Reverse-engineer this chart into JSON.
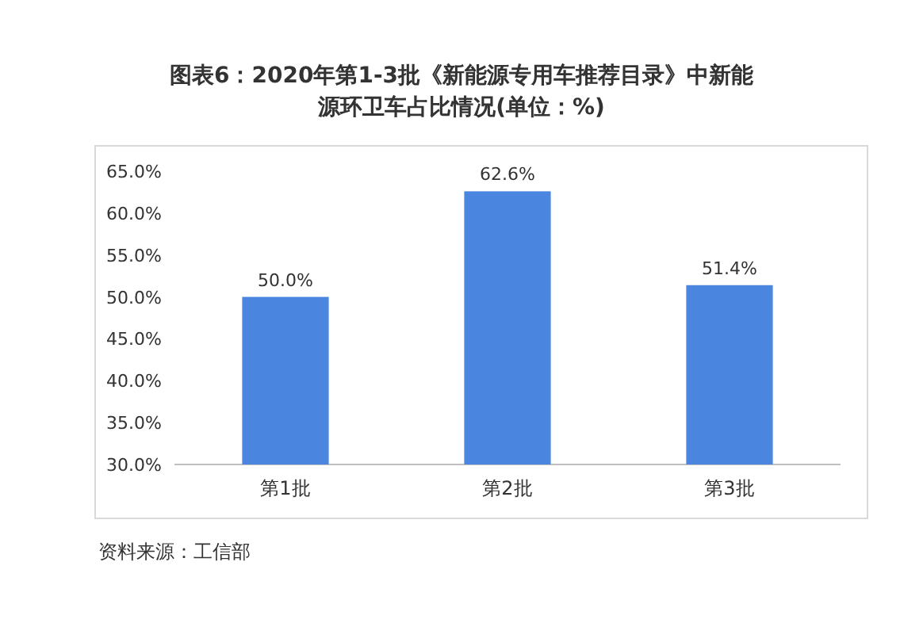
{
  "chart_data": {
    "type": "bar",
    "title": "图表6：2020年第1-3批《新能源专用车推荐目录》中新能源环卫车占比情况(单位：%)",
    "categories": [
      "第1批",
      "第2批",
      "第3批"
    ],
    "values": [
      50.0,
      62.6,
      51.4
    ],
    "value_labels": [
      "50.0%",
      "62.6%",
      "51.4%"
    ],
    "color": "#4a86e0",
    "ylim": [
      30,
      65
    ],
    "yticks": [
      {
        "value": 30,
        "label": "30.0%"
      },
      {
        "value": 35,
        "label": "35.0%"
      },
      {
        "value": 40,
        "label": "40.0%"
      },
      {
        "value": 45,
        "label": "45.0%"
      },
      {
        "value": 50,
        "label": "50.0%"
      },
      {
        "value": 55,
        "label": "55.0%"
      },
      {
        "value": 60,
        "label": "60.0%"
      },
      {
        "value": 65,
        "label": "65.0%"
      }
    ],
    "grid": false,
    "annotations": [
      "资料来源：工信部"
    ]
  }
}
